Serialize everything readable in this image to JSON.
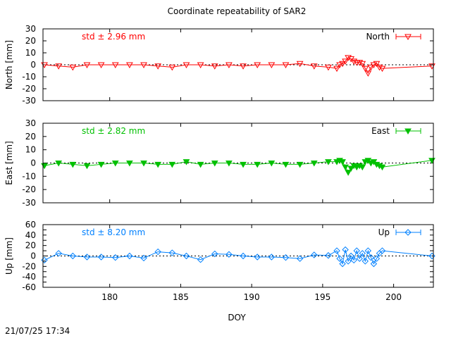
{
  "title": "Coordinate repeatability of SAR2",
  "timestamp": "21/07/25 17:34",
  "xlabel": "DOY",
  "x_ticks": [
    180,
    185,
    190,
    195,
    200
  ],
  "xlim": [
    175.3,
    202.8
  ],
  "chart_data": [
    {
      "type": "line",
      "panel": "north",
      "ylabel": "North [mm]",
      "legend": "North",
      "legend_position": "top-right",
      "marker": "triangle-down-open",
      "color": "#ff0000",
      "std_label": "std ± 2.96 mm",
      "ylim": [
        -30,
        30
      ],
      "yticks": [
        -30,
        -20,
        -10,
        0,
        10,
        20,
        30
      ],
      "x": [
        175.4,
        176.4,
        177.4,
        178.4,
        179.4,
        180.4,
        181.4,
        182.4,
        183.4,
        184.4,
        185.4,
        186.4,
        187.4,
        188.4,
        189.4,
        190.4,
        191.4,
        192.4,
        193.4,
        194.4,
        195.4,
        196.0,
        196.2,
        196.4,
        196.6,
        196.8,
        197.0,
        197.2,
        197.4,
        197.6,
        197.8,
        198.0,
        198.2,
        198.4,
        198.6,
        198.8,
        199.0,
        199.2,
        202.7
      ],
      "values": [
        0,
        -1,
        -2,
        0,
        0,
        0,
        0,
        0,
        -1,
        -2,
        0,
        0,
        -1,
        0,
        -1,
        0,
        0,
        0,
        1,
        -1,
        -2,
        -3,
        0,
        1,
        3,
        6,
        5,
        3,
        2,
        2,
        1,
        -3,
        -7,
        -2,
        0,
        1,
        -2,
        -3,
        -1
      ]
    },
    {
      "type": "line",
      "panel": "east",
      "ylabel": "East [mm]",
      "legend": "East",
      "legend_position": "top-right",
      "marker": "triangle-down-filled",
      "color": "#00c000",
      "std_label": "std ± 2.82 mm",
      "ylim": [
        -30,
        30
      ],
      "yticks": [
        -30,
        -20,
        -10,
        0,
        10,
        20,
        30
      ],
      "x": [
        175.4,
        176.4,
        177.4,
        178.4,
        179.4,
        180.4,
        181.4,
        182.4,
        183.4,
        184.4,
        185.4,
        186.4,
        187.4,
        188.4,
        189.4,
        190.4,
        191.4,
        192.4,
        193.4,
        194.4,
        195.4,
        196.0,
        196.2,
        196.4,
        196.6,
        196.8,
        197.0,
        197.2,
        197.4,
        197.6,
        197.8,
        198.0,
        198.2,
        198.4,
        198.6,
        198.8,
        199.0,
        199.2,
        202.7
      ],
      "values": [
        -2,
        0,
        -1,
        -2,
        -1,
        0,
        0,
        0,
        -1,
        -1,
        1,
        -1,
        0,
        0,
        -1,
        -1,
        0,
        -1,
        -1,
        0,
        1,
        1,
        2,
        1,
        -3,
        -7,
        -4,
        -2,
        -3,
        -2,
        -3,
        1,
        2,
        0,
        1,
        -1,
        -2,
        -3,
        2
      ]
    },
    {
      "type": "line",
      "panel": "up",
      "ylabel": "Up [mm]",
      "legend": "Up",
      "legend_position": "top-right",
      "marker": "diamond-open",
      "color": "#0080ff",
      "std_label": "std ± 8.20 mm",
      "ylim": [
        -60,
        60
      ],
      "yticks": [
        -60,
        -50,
        -40,
        -30,
        -20,
        -10,
        0,
        10,
        20,
        30,
        40,
        50,
        60
      ],
      "ytick_labels": [
        -60,
        -40,
        -20,
        0,
        20,
        40,
        60
      ],
      "x": [
        175.4,
        176.4,
        177.4,
        178.4,
        179.4,
        180.4,
        181.4,
        182.4,
        183.4,
        184.4,
        185.4,
        186.4,
        187.4,
        188.4,
        189.4,
        190.4,
        191.4,
        192.4,
        193.4,
        194.4,
        195.4,
        196.0,
        196.2,
        196.4,
        196.6,
        196.8,
        197.0,
        197.2,
        197.4,
        197.6,
        197.8,
        198.0,
        198.2,
        198.4,
        198.6,
        198.8,
        199.0,
        199.2,
        202.7
      ],
      "values": [
        -8,
        5,
        0,
        -2,
        -2,
        -3,
        0,
        -4,
        8,
        6,
        0,
        -7,
        4,
        3,
        0,
        -2,
        -2,
        -3,
        -5,
        2,
        1,
        10,
        -5,
        -15,
        12,
        -10,
        0,
        -8,
        10,
        -5,
        5,
        -10,
        10,
        -3,
        -15,
        -5,
        5,
        10,
        0
      ]
    }
  ]
}
